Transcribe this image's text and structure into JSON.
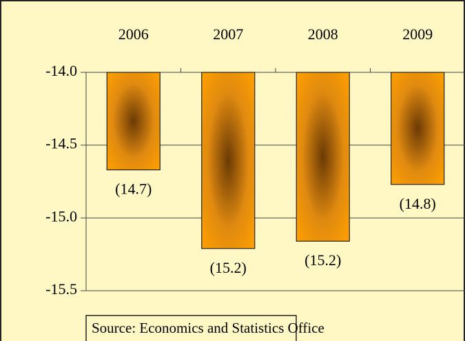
{
  "chart_data": {
    "type": "bar",
    "categories": [
      "2006",
      "2007",
      "2008",
      "2009"
    ],
    "values": [
      -14.67,
      -15.21,
      -15.16,
      -14.77
    ],
    "value_labels": [
      "(14.7)",
      "(15.2)",
      "(15.2)",
      "(14.8)"
    ],
    "color": "#ff9a00",
    "ylim": [
      -15.5,
      -14.0
    ],
    "yticks": [
      {
        "value": -14.0,
        "label": "-14.0"
      },
      {
        "value": -14.5,
        "label": "-14.5"
      },
      {
        "value": -15.0,
        "label": "-15.0"
      },
      {
        "value": -15.5,
        "label": "-15.5"
      }
    ],
    "grid": true,
    "source": "Source: Economics and Statistics Office"
  }
}
